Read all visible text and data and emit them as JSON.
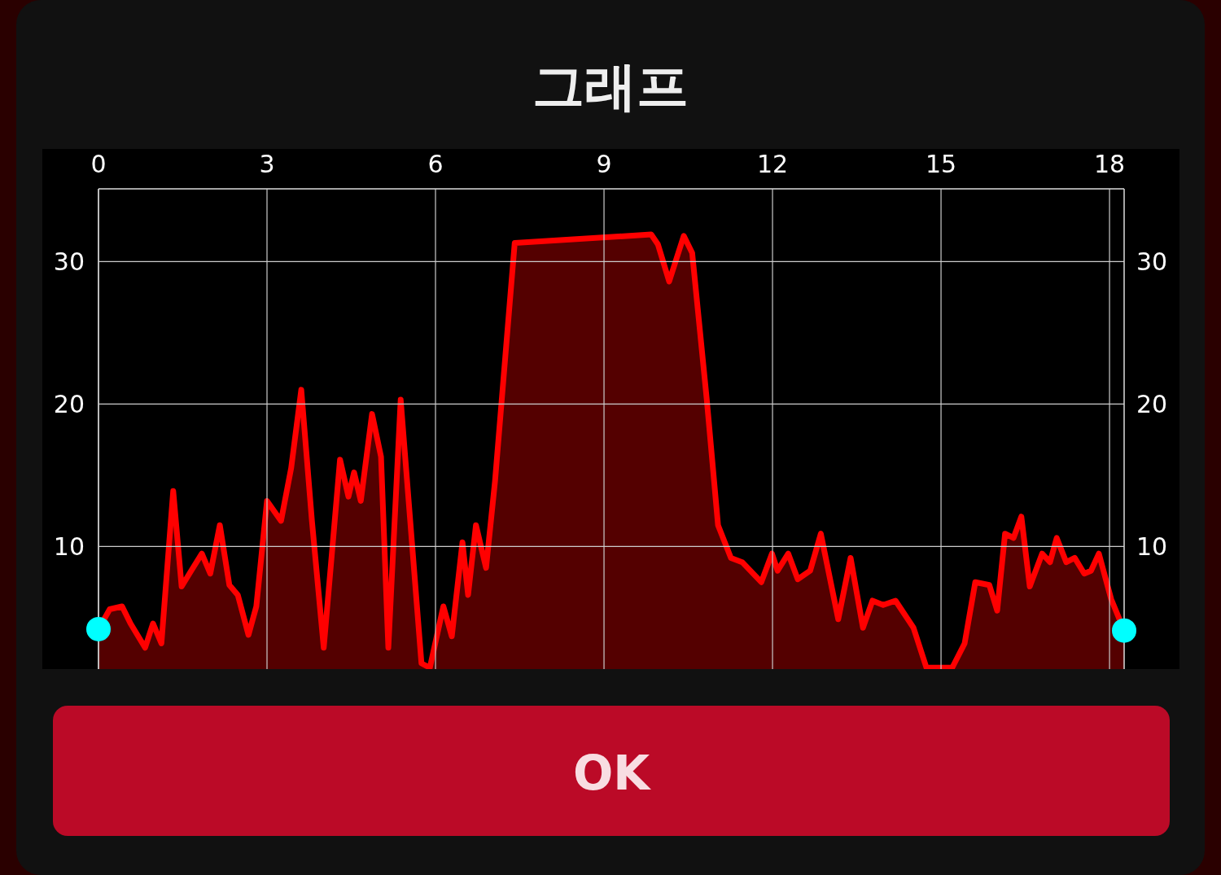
{
  "chart_data": {
    "type": "area",
    "title": "그래프",
    "xlim": [
      0,
      18.26
    ],
    "xticks": [
      0,
      3,
      6,
      9,
      12,
      15,
      18
    ],
    "ylim": [
      1.4,
      35.1
    ],
    "yticks": [
      10,
      20,
      30
    ],
    "y2lim": [
      1.4,
      35.1
    ],
    "y2ticks": [
      10,
      20,
      30
    ],
    "grid": true,
    "marker": "none",
    "x": [
      0,
      0.2,
      0.42,
      0.57,
      0.83,
      0.97,
      1.12,
      1.33,
      1.48,
      1.65,
      1.84,
      1.99,
      2.16,
      2.33,
      2.48,
      2.67,
      2.81,
      3.0,
      3.25,
      3.43,
      3.61,
      3.8,
      4.01,
      4.3,
      4.45,
      4.55,
      4.67,
      4.87,
      5.03,
      5.16,
      5.38,
      5.75,
      5.9,
      6.14,
      6.29,
      6.48,
      6.58,
      6.72,
      6.9,
      7.06,
      7.41,
      9.84,
      9.96,
      10.16,
      10.42,
      10.57,
      10.83,
      11.03,
      11.26,
      11.46,
      11.8,
      11.99,
      12.09,
      12.28,
      12.45,
      12.67,
      12.86,
      13.17,
      13.39,
      13.61,
      13.78,
      13.97,
      14.19,
      14.51,
      14.74,
      15.2,
      15.42,
      15.61,
      15.86,
      16.0,
      16.14,
      16.29,
      16.43,
      16.58,
      16.8,
      16.94,
      17.06,
      17.23,
      17.38,
      17.55,
      17.67,
      17.81,
      18.03,
      18.26
    ],
    "series": [
      {
        "color": "#ff0000",
        "values": [
          4.2,
          5.6,
          5.8,
          4.6,
          2.9,
          4.6,
          3.2,
          13.9,
          7.2,
          8.3,
          9.5,
          8.1,
          11.5,
          7.3,
          6.6,
          3.8,
          5.8,
          13.2,
          11.8,
          15.5,
          21.0,
          11.8,
          2.9,
          16.1,
          13.5,
          15.2,
          13.2,
          19.3,
          16.3,
          2.9,
          20.3,
          1.8,
          1.5,
          5.8,
          3.7,
          10.3,
          6.6,
          11.5,
          8.5,
          14.6,
          31.3,
          31.9,
          31.2,
          28.6,
          31.8,
          30.6,
          20.3,
          11.5,
          9.2,
          8.9,
          7.5,
          9.5,
          8.3,
          9.5,
          7.7,
          8.3,
          10.9,
          4.9,
          9.2,
          4.3,
          6.2,
          5.9,
          6.2,
          4.3,
          1.5,
          1.5,
          3.2,
          7.5,
          7.3,
          5.5,
          10.9,
          10.6,
          12.1,
          7.2,
          9.5,
          8.9,
          10.6,
          8.9,
          9.2,
          8.1,
          8.3,
          9.5,
          6.3,
          4.1
        ]
      },
      {
        "type": "scatter",
        "color": "#00ffff",
        "marker": "circle",
        "x": [
          0,
          18.26
        ],
        "values": [
          4.2,
          4.1
        ]
      }
    ],
    "annotations": [
      "OK"
    ]
  }
}
